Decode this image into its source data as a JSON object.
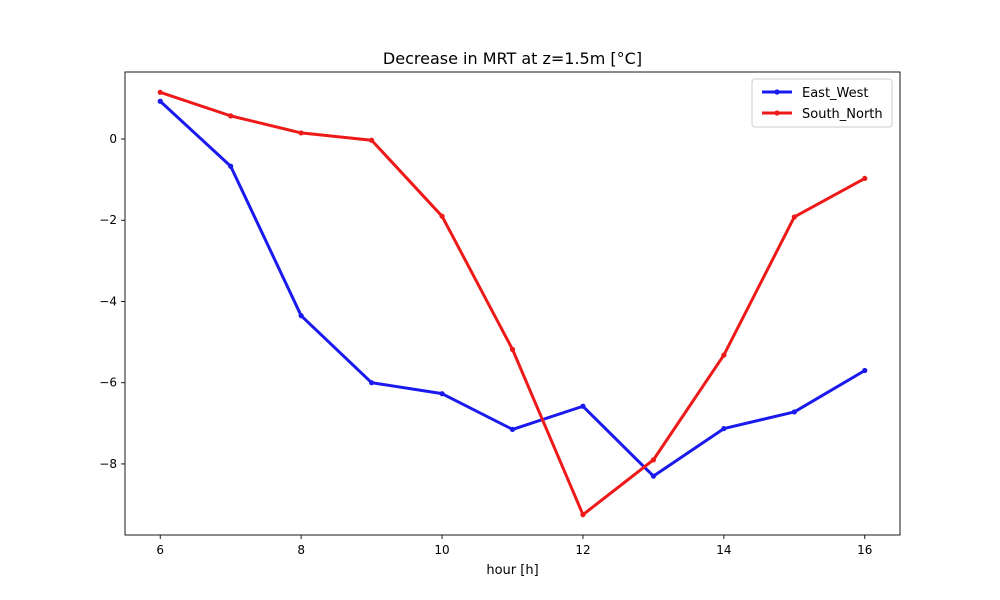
{
  "chart_data": {
    "type": "line",
    "title": "Decrease in MRT at z=1.5m [°C]",
    "xlabel": "hour [h]",
    "ylabel": "",
    "x": [
      6,
      7,
      8,
      9,
      10,
      11,
      12,
      13,
      14,
      15,
      16
    ],
    "xlim": [
      5.5,
      16.5
    ],
    "ylim": [
      -9.75,
      1.65
    ],
    "xticks": [
      6,
      8,
      10,
      12,
      14,
      16
    ],
    "yticks": [
      0,
      -2,
      -4,
      -6,
      -8
    ],
    "grid": false,
    "legend_position": "top-right",
    "series": [
      {
        "name": "East_West",
        "color": "#1a1aee",
        "values": [
          0.93,
          -0.67,
          -4.35,
          -6.0,
          -6.27,
          -7.15,
          -6.58,
          -8.3,
          -7.13,
          -6.72,
          -5.7
        ]
      },
      {
        "name": "South_North",
        "color": "#ee1a1a",
        "values": [
          1.15,
          0.57,
          0.15,
          -0.03,
          -1.9,
          -5.18,
          -9.25,
          -7.9,
          -5.32,
          -1.92,
          -0.97
        ]
      }
    ]
  }
}
